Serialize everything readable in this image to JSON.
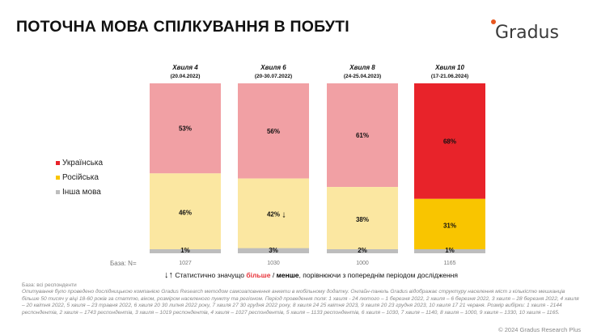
{
  "title": "ПОТОЧНА МОВА СПІЛКУВАННЯ В ПОБУТІ",
  "logo": "Gradus",
  "colors": {
    "ukrainian": "#f1a0a4",
    "russian": "#fbe7a1",
    "other": "#bdbdbd",
    "ukrainian_latest": "#e8232a",
    "russian_latest": "#f9c500"
  },
  "chart_data": {
    "type": "stacked-bar",
    "categories": [
      {
        "wave": "Хвиля 4",
        "dates": "(20.04.2022)",
        "base": "1027"
      },
      {
        "wave": "Хвиля 6",
        "dates": "(20-30.07.2022)",
        "base": "1030"
      },
      {
        "wave": "Хвиля 8",
        "dates": "(24-25.04.2023)",
        "base": "1000"
      },
      {
        "wave": "Хвиля 10",
        "dates": "(17-21.06.2024)",
        "base": "1165"
      }
    ],
    "series": [
      {
        "name": "Українська",
        "values": [
          53,
          56,
          61,
          68
        ],
        "labels": [
          "53%",
          "56%",
          "61%",
          "68%"
        ]
      },
      {
        "name": "Російська",
        "values": [
          46,
          42,
          38,
          31
        ],
        "labels": [
          "46%",
          "42%",
          "38%",
          "31%"
        ]
      },
      {
        "name": "Інша мова",
        "values": [
          1,
          3,
          2,
          1
        ],
        "labels": [
          "1%",
          "3%",
          "2%",
          "1%"
        ]
      }
    ],
    "significant_decrease": {
      "series": "Російська",
      "wave": "Хвиля 6",
      "marker": "↓"
    },
    "base_label": "База: N=",
    "ylim": [
      0,
      100
    ]
  },
  "note": {
    "arrows": "↓↑",
    "text_before": "Статистично значущо ",
    "more": "більше",
    "slash": " / ",
    "less": "менше",
    "text_after": ", порівнюючи з попереднім періодом дослідження"
  },
  "footnote": {
    "base": "База: всі респонденти",
    "text": "Опитування було проведено дослідницькою компанією Gradus Research методом самозаповнення анкети в мобільному додатку. Онлайн-панель Gradus відображає структуру населення міст з кількістю мешканців більше 50 тисяч у віці 18-60 років за статтю, віком, розміром населеного пункту та регіоном. Період проведення поля: 1 хвиля - 24 лютого – 1 березня 2022, 2 хвиля – 6 березня 2022, 3 хвиля – 28 березня 2022, 4 хвиля – 20 квітня 2022, 5 хвиля – 23 травня 2022, 6 хвиля 20 30 липня 2022 року, 7 хвиля 27 30 грудня 2022 року, 8 хвиля 24 25 квітня 2023, 9 хвиля 20 23 грудня 2023, 10 хвиля 17 21 червня. Розмір вибірки: 1 хвиля - 2144 респондентів, 2 хвиля – 1743 респондентів, 3 хвиля – 1019 респондентів, 4 хвиля – 1027 респондентів, 5 хвиля – 1133 респондентів, 6 хвиля – 1030, 7 хвиля – 1140, 8 хвиля – 1000, 9 хвиля – 1330, 10 хвиля – 1165."
  },
  "copyright": "© 2024 Gradus Research Plus"
}
